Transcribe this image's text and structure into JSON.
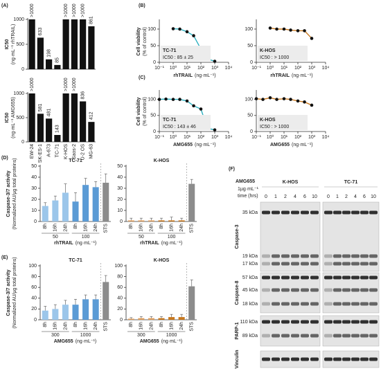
{
  "panels": [
    "(A)",
    "(B)",
    "(C)",
    "(D)",
    "(E)",
    "(F)"
  ],
  "chart_data": [
    {
      "type": "bar",
      "ylabel": "IC50",
      "yunit": "(ng·mL⁻¹ rhTRAIL)",
      "categories": [
        null,
        null,
        null,
        null,
        null,
        null,
        null,
        null
      ],
      "values": [
        1000,
        633,
        198,
        85,
        1000,
        1000,
        1000,
        861
      ],
      "value_labels": [
        ">1000",
        "633",
        "198",
        "85",
        ">1000",
        ">1000",
        ">1000",
        "861"
      ],
      "color": "#111111",
      "ylim": [
        0,
        1000
      ],
      "yticks": [
        0,
        500,
        1000
      ]
    },
    {
      "type": "bar",
      "ylabel": "IC50",
      "yunit": "(ng·mL⁻¹ AMG655)",
      "categories": [
        "EW-24",
        "SK-ES-1",
        "A-673",
        "TC-71",
        "K-HOS",
        "Saos-2",
        "U-2 OS",
        "MG-63"
      ],
      "values": [
        1000,
        581,
        481,
        143,
        1000,
        1000,
        836,
        412
      ],
      "value_labels": [
        ">1000",
        "581",
        "481",
        "143",
        ">1000",
        ">1000",
        "836",
        "412"
      ],
      "color": "#111111",
      "ylim": [
        0,
        1000
      ],
      "yticks": [
        0,
        500,
        1000
      ]
    },
    {
      "type": "scatter",
      "title": "TC-71",
      "title_color": "#7fb2e0",
      "annotation": "IC50 : 85 ± 25",
      "ylabel": "Cell viability",
      "yunit": "(% of control)",
      "xlabel": "rhTRAIL",
      "xunit": "(ng·mL⁻¹)",
      "x": [
        1,
        3,
        10,
        30,
        100,
        300,
        1000
      ],
      "values": [
        101,
        100,
        92,
        80,
        40,
        10,
        3
      ],
      "color": "#2bb0c0",
      "log_x": true,
      "xlim": [
        0.1,
        10000
      ],
      "xticks": [
        {
          "value": 0.1,
          "label": "10⁻¹"
        },
        {
          "value": 1,
          "label": "10⁰"
        },
        {
          "value": 10,
          "label": "10¹"
        },
        {
          "value": 100,
          "label": "10²"
        },
        {
          "value": 1000,
          "label": "10³"
        },
        {
          "value": 10000,
          "label": "10⁴"
        }
      ],
      "ylim": [
        0,
        125
      ],
      "yticks": [
        0,
        50,
        100
      ]
    },
    {
      "type": "scatter",
      "title": "K-HOS",
      "title_color": "#c0772a",
      "annotation": "IC50 : > 1000",
      "xlabel": "rhTRAIL",
      "xunit": "(ng·mL⁻¹)",
      "x": [
        1,
        3,
        10,
        30,
        100,
        300,
        1000
      ],
      "values": [
        103,
        100,
        100,
        97,
        95,
        95,
        72
      ],
      "color": "#c8781e",
      "log_x": true,
      "xlim": [
        0.1,
        10000
      ],
      "xticks": [
        {
          "value": 0.1,
          "label": "10⁻¹"
        },
        {
          "value": 1,
          "label": "10⁰"
        },
        {
          "value": 10,
          "label": "10¹"
        },
        {
          "value": 100,
          "label": "10²"
        },
        {
          "value": 1000,
          "label": "10³"
        },
        {
          "value": 10000,
          "label": "10⁴"
        }
      ],
      "ylim": [
        0,
        125
      ],
      "yticks": [
        0,
        50,
        100
      ]
    },
    {
      "type": "scatter",
      "title": "TC-71",
      "title_color": "#7fb2e0",
      "annotation": "IC50 : 143 ± 46",
      "ylabel": "Cell viability",
      "yunit": "(% of control)",
      "xlabel": "AMG655",
      "xunit": "(ng·mL⁻¹)",
      "x": [
        0.1,
        0.3,
        1,
        3,
        10,
        30,
        100,
        300,
        1000
      ],
      "values": [
        100,
        101,
        100,
        100,
        95,
        80,
        70,
        10,
        5
      ],
      "color": "#2bb0c0",
      "log_x": true,
      "xlim": [
        0.1,
        10000
      ],
      "xticks": [
        {
          "value": 0.1,
          "label": "10⁻¹"
        },
        {
          "value": 1,
          "label": "10⁰"
        },
        {
          "value": 10,
          "label": "10¹"
        },
        {
          "value": 100,
          "label": "10²"
        },
        {
          "value": 1000,
          "label": "10³"
        },
        {
          "value": 10000,
          "label": "10⁴"
        }
      ],
      "ylim": [
        0,
        125
      ],
      "yticks": [
        0,
        50,
        100
      ]
    },
    {
      "type": "scatter",
      "title": "K-HOS",
      "title_color": "#c0772a",
      "annotation": "IC50 : > 1000",
      "xlabel": "AMG655",
      "xunit": "(ng·mL⁻¹)",
      "x": [
        0.1,
        0.3,
        1,
        3,
        10,
        30,
        100,
        300,
        1000
      ],
      "values": [
        102,
        100,
        105,
        100,
        102,
        100,
        95,
        92,
        82
      ],
      "color": "#c8781e",
      "log_x": true,
      "xlim": [
        0.1,
        10000
      ],
      "xticks": [
        {
          "value": 0.1,
          "label": "10⁻¹"
        },
        {
          "value": 1,
          "label": "10⁰"
        },
        {
          "value": 10,
          "label": "10¹"
        },
        {
          "value": 100,
          "label": "10²"
        },
        {
          "value": 1000,
          "label": "10³"
        },
        {
          "value": 10000,
          "label": "10⁴"
        }
      ],
      "ylim": [
        0,
        125
      ],
      "yticks": [
        0,
        50,
        100
      ]
    },
    {
      "type": "bar",
      "title": "TC-71",
      "title_color": "#7fb2e0",
      "ylabel": "Caspase-3/7 activity",
      "yunit": "(Normalized AU/µg total proteins)",
      "categories": [
        "8h",
        "16h",
        "24h",
        "8h",
        "16h",
        "24h",
        "STS"
      ],
      "groups": [
        "50",
        "100"
      ],
      "xlabel": "rhTRAIL",
      "xunit": "(ng·mL⁻¹)",
      "values": [
        14,
        19,
        26,
        18,
        33,
        31,
        35
      ],
      "errors": [
        3,
        4,
        8,
        8,
        6,
        5,
        8
      ],
      "colors": [
        "#9cc6ea",
        "#9cc6ea",
        "#9cc6ea",
        "#5b9bd5",
        "#5b9bd5",
        "#5b9bd5",
        "#8c8c8c"
      ],
      "ylim": [
        0,
        50
      ],
      "yticks": [
        0,
        10,
        20,
        30,
        40,
        50
      ]
    },
    {
      "type": "bar",
      "title": "K-HOS",
      "title_color": "#c0772a",
      "categories": [
        "8h",
        "16h",
        "24h",
        "8h",
        "16h",
        "24h",
        "STS"
      ],
      "groups": [
        "50",
        "100"
      ],
      "xlabel": "rhTRAIL",
      "xunit": "(ng·mL⁻¹)",
      "values": [
        1,
        1,
        1,
        1,
        1,
        1,
        34
      ],
      "errors": [
        2,
        2,
        2,
        2,
        3,
        2,
        4
      ],
      "colors": [
        "#e0a060",
        "#e0a060",
        "#e0a060",
        "#c8781e",
        "#c8781e",
        "#c8781e",
        "#8c8c8c"
      ],
      "ylim": [
        0,
        50
      ],
      "yticks": [
        0,
        10,
        20,
        30,
        40,
        50
      ]
    },
    {
      "type": "bar",
      "title": "TC-71",
      "title_color": "#7fb2e0",
      "ylabel": "Caspase-3/7 activity",
      "yunit": "(Normalized AU/µg total proteins)",
      "categories": [
        "8h",
        "16h",
        "24h",
        "8h",
        "16h",
        "24h",
        "STS"
      ],
      "groups": [
        "300",
        "1000"
      ],
      "xlabel": "AMG655",
      "xunit": "(ng·mL⁻¹)",
      "values": [
        17,
        20,
        28,
        28,
        38,
        38,
        70
      ],
      "errors": [
        8,
        8,
        8,
        10,
        8,
        8,
        12
      ],
      "colors": [
        "#9cc6ea",
        "#9cc6ea",
        "#9cc6ea",
        "#5b9bd5",
        "#5b9bd5",
        "#5b9bd5",
        "#8c8c8c"
      ],
      "ylim": [
        0,
        100
      ],
      "yticks": [
        0,
        20,
        40,
        60,
        80,
        100
      ]
    },
    {
      "type": "bar",
      "title": "K-HOS",
      "title_color": "#c0772a",
      "categories": [
        "8h",
        "16h",
        "24h",
        "8h",
        "16h",
        "24h",
        "STS"
      ],
      "groups": [
        "300",
        "1000"
      ],
      "xlabel": "AMG655",
      "xunit": "(ng·mL⁻¹)",
      "values": [
        2,
        3,
        3,
        3,
        5,
        5,
        62
      ],
      "errors": [
        2,
        3,
        3,
        3,
        5,
        5,
        12
      ],
      "colors": [
        "#e0a060",
        "#e0a060",
        "#e0a060",
        "#c8781e",
        "#c8781e",
        "#c8781e",
        "#8c8c8c"
      ],
      "ylim": [
        0,
        100
      ],
      "yticks": [
        0,
        20,
        40,
        60,
        80,
        100
      ]
    }
  ],
  "blot": {
    "treatment": "AMG655",
    "dose": "1µg·mL⁻¹",
    "time_label": "time (hrs)",
    "lines": [
      "K-HOS",
      "TC-71"
    ],
    "line_colors": [
      "#c0772a",
      "#7fb2e0"
    ],
    "times": [
      0,
      1,
      2,
      4,
      6,
      10
    ],
    "proteins": [
      {
        "name": "Caspase-3",
        "markers": [
          "35 kDa",
          "19 kDa",
          "17 kDa"
        ]
      },
      {
        "name": "Caspase-8",
        "markers": [
          "57 kDa",
          "45 kDa",
          "18 kDa"
        ]
      },
      {
        "name": "PARP-1",
        "markers": [
          "110 kDa",
          "89 kDa"
        ]
      },
      {
        "name": "Vinculin",
        "markers": []
      }
    ]
  }
}
